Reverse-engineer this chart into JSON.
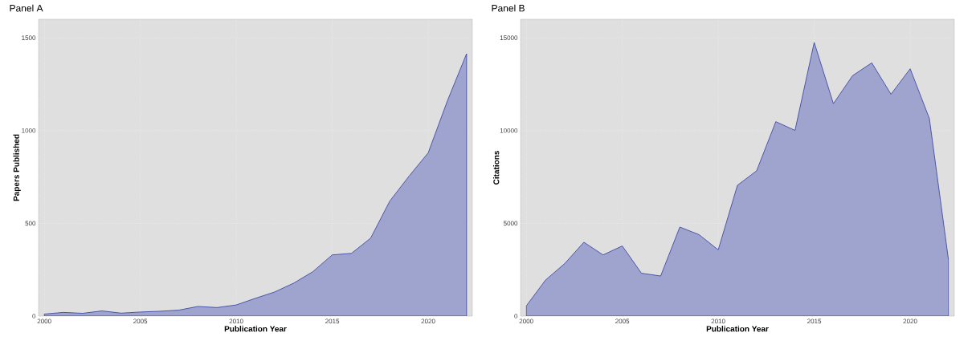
{
  "chart_data": [
    {
      "type": "area",
      "title": "Panel A",
      "xlabel": "Publication Year",
      "ylabel": "Papers Published",
      "x": [
        2000,
        2001,
        2002,
        2003,
        2004,
        2005,
        2006,
        2007,
        2008,
        2009,
        2010,
        2011,
        2012,
        2013,
        2014,
        2015,
        2016,
        2017,
        2018,
        2019,
        2020,
        2021,
        2022
      ],
      "series": [
        {
          "color": "#9fa4cf",
          "values": [
            11,
            20,
            15,
            28,
            16,
            22,
            26,
            32,
            52,
            46,
            60,
            96,
            130,
            178,
            240,
            330,
            338,
            420,
            620,
            754,
            880,
            1160,
            1414
          ]
        }
      ],
      "xlim": [
        1999.7,
        2022.3
      ],
      "xticks": [
        2000,
        2005,
        2010,
        2015,
        2020
      ],
      "ylim": [
        0,
        1600
      ],
      "yticks": [
        0,
        500,
        1000,
        1500
      ],
      "grid": true
    },
    {
      "type": "area",
      "title": "Panel B",
      "xlabel": "Publication Year",
      "ylabel": "Citations",
      "x": [
        2000,
        2001,
        2002,
        2003,
        2004,
        2005,
        2006,
        2007,
        2008,
        2009,
        2010,
        2011,
        2012,
        2013,
        2014,
        2015,
        2016,
        2017,
        2018,
        2019,
        2020,
        2021,
        2022
      ],
      "series": [
        {
          "color": "#9fa4cf",
          "values": [
            550,
            1940,
            2830,
            3980,
            3300,
            3780,
            2310,
            2160,
            4800,
            4390,
            3570,
            7050,
            7830,
            10480,
            10010,
            14750,
            11450,
            12960,
            13650,
            11960,
            13330,
            10650,
            3000
          ]
        }
      ],
      "xlim": [
        1999.7,
        2022.3
      ],
      "xticks": [
        2000,
        2005,
        2010,
        2015,
        2020
      ],
      "ylim": [
        0,
        16000
      ],
      "yticks": [
        0,
        5000,
        10000,
        15000
      ],
      "grid": true
    }
  ]
}
